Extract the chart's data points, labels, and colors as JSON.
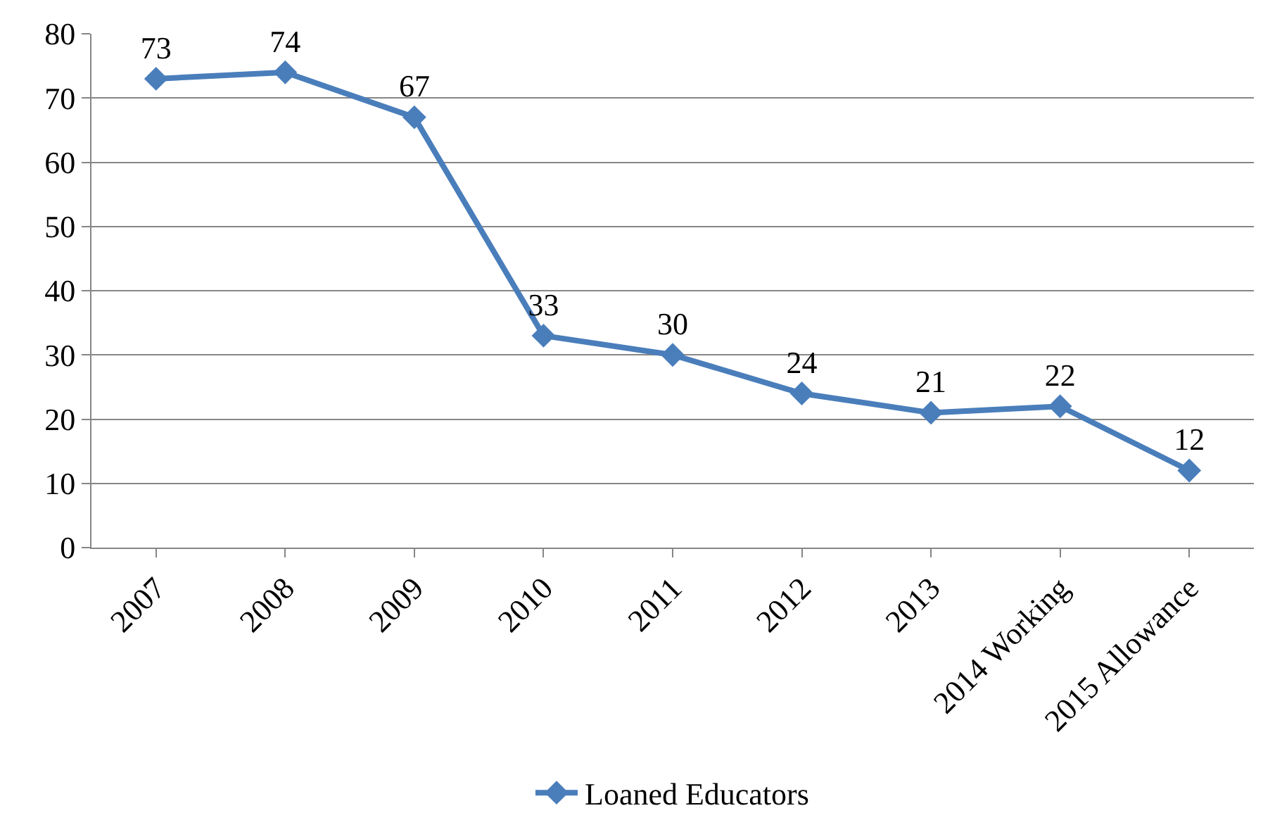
{
  "chart_data": {
    "type": "line",
    "categories": [
      "2007",
      "2008",
      "2009",
      "2010",
      "2011",
      "2012",
      "2013",
      "2014 Working",
      "2015 Allowance"
    ],
    "series": [
      {
        "name": "Loaned Educators",
        "color": "#4a7ebb",
        "values": [
          73,
          74,
          67,
          33,
          30,
          24,
          21,
          22,
          12
        ]
      }
    ],
    "ylim": [
      0,
      80
    ],
    "yticks": [
      0,
      10,
      20,
      30,
      40,
      50,
      60,
      70,
      80
    ],
    "grid": "y",
    "legend": "bottom",
    "marker": "diamond",
    "line_style": "solid",
    "data_labels": true
  }
}
